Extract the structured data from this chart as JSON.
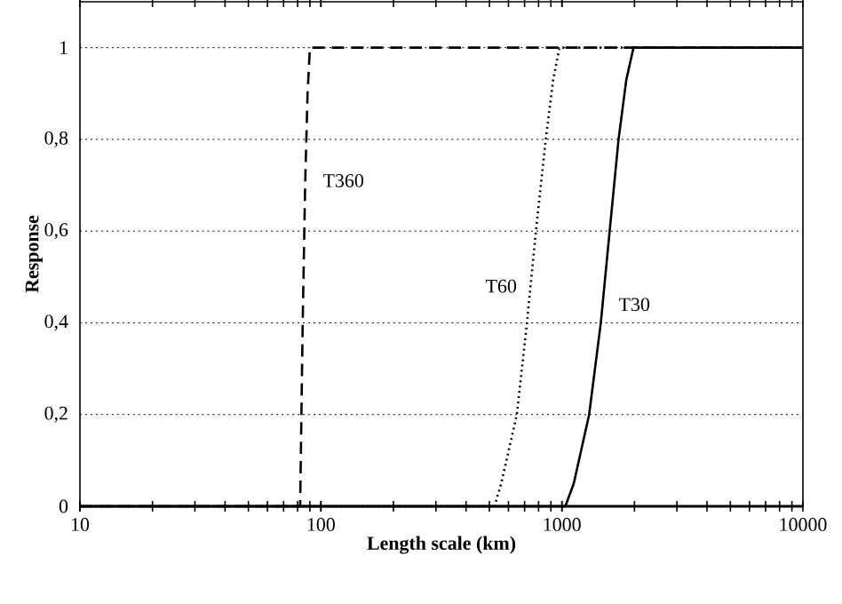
{
  "chart_data": {
    "type": "line",
    "xlabel": "Length scale (km)",
    "ylabel": "Response",
    "log": "x",
    "xlim": [
      10,
      10000
    ],
    "ylim": [
      0,
      1.1
    ],
    "xticks": [
      10,
      100,
      1000,
      10000
    ],
    "yticks": [
      0,
      {
        "value": 0.2,
        "label": "0,2"
      },
      {
        "value": 0.4,
        "label": "0,4"
      },
      {
        "value": 0.6,
        "label": "0,6"
      },
      {
        "value": 0.8,
        "label": "0,8"
      },
      1
    ],
    "grid": "y",
    "legend": false,
    "marker": "none",
    "series": [
      {
        "name": "T360",
        "color": "#000000",
        "line_style": "dashed",
        "x": [
          10,
          82,
          84,
          86,
          88,
          90,
          10000
        ],
        "values": [
          0,
          0,
          0.4,
          0.7,
          0.9,
          1,
          1
        ]
      },
      {
        "name": "T60",
        "color": "#000000",
        "line_style": "dotted",
        "x": [
          10,
          525,
          560,
          650,
          716,
          780,
          857,
          920,
          977,
          10000
        ],
        "values": [
          0,
          0,
          0.05,
          0.2,
          0.4,
          0.6,
          0.8,
          0.93,
          1,
          1
        ]
      },
      {
        "name": "T30",
        "color": "#000000",
        "line_style": "solid",
        "x": [
          10,
          1033,
          1120,
          1297,
          1450,
          1578,
          1718,
          1850,
          1982,
          10000
        ],
        "values": [
          0,
          0,
          0.05,
          0.2,
          0.4,
          0.6,
          0.8,
          0.93,
          1,
          1
        ]
      }
    ]
  }
}
